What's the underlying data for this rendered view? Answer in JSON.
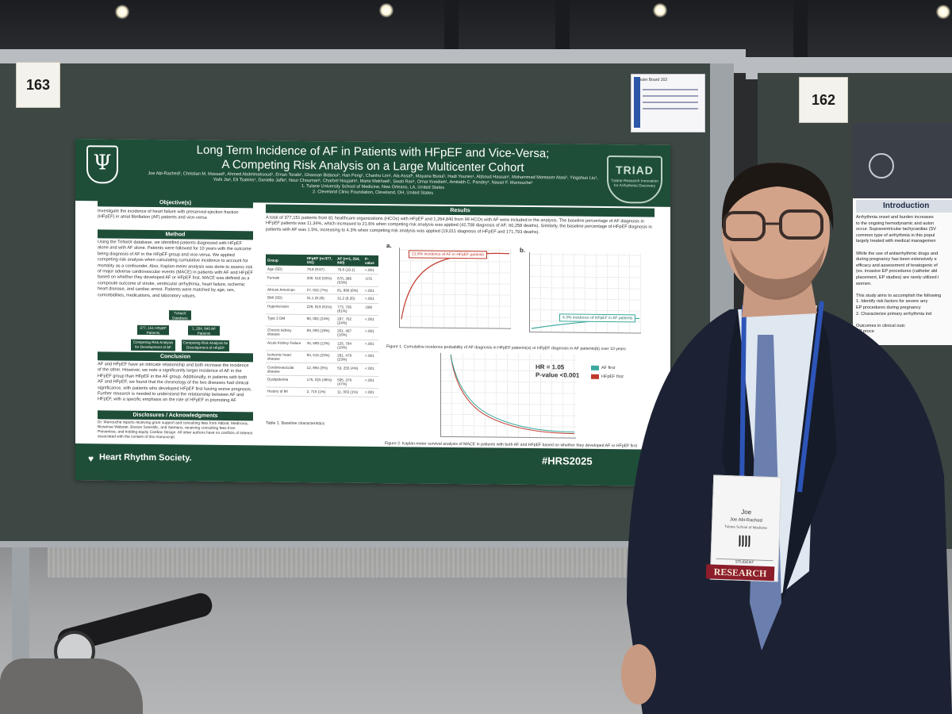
{
  "board_left": {
    "number": "163"
  },
  "board_right": {
    "number": "162"
  },
  "small_card": {
    "title": "Poster Board 163"
  },
  "poster": {
    "title_line1": "Long Term Incidence of AF in Patients with HFpEF and Vice-Versa;",
    "title_line2": "A Competing Risk Analysis on a Large Multicenter Cohort",
    "authors": "Joe Abi-Rached¹, Christian M. Massad¹, Ahmed Abdelmaksoud¹, Eman Torabi¹, Ghassan Bidaoui¹, Han Feng¹, Chanho Lim¹, Ala Assaf¹, Mayana Bsoul¹, Hadi Younes¹, Abboud Hassan¹, Mohammad Montaser Atasi¹, Yingshuo Liu¹, Yishi Jia¹, Eli Tsakiris¹, Danielle Jaffe¹, Nour Chouman¹, Charbel Noujaim¹, Mario Mekhael¹, Swati Rao¹, Omar Kreidieh¹, Amitabh C. Pandey¹, Nassir F. Marrouche¹",
    "affil1": "1. Tulane University School of Medicine, New Orleans, LA, United States",
    "affil2": "2. Cleveland Clinic Foundation, Cleveland, OH, United States",
    "logo_right": "TRIAD",
    "logo_right_sub": "Tulane Research Innovation for Arrhythmia Discovery",
    "objective_h": "Objective(s)",
    "objective_t": "Investigate the incidence of heart failure with preserved ejection fraction (HFpEF) in atrial fibrillation (AF) patients and vice-versa",
    "method_h": "Method",
    "method_t": "Using the TriNetX database, we identified patients diagnosed with HFpEF alone and with AF alone. Patients were followed for 10 years with the outcome being diagnosis of AF in the HFpEF group and vice-versa. We applied competing risk analysis when calculating cumulative incidence to account for mortality as a confounder. Also, Kaplan-meier analysis was done to assess risk of major adverse cardiovascular events (MACE) in patients with AF and HFpEF based on whether they developed AF or HFpEF first. MACE was defined as a composite outcome of stroke, ventricular arrhythmia, heart failure, ischemic heart disease, and cardiac arrest. Patients were matched by age, sex, comorbidities, medications, and laboratory values.",
    "flow_db": "TriNetX Database",
    "flow_a": "377, 151 HFpEF Patients",
    "flow_b": "1, 264, 840 AF Patients",
    "flow_c": "Competing Risk Analysis for Development of AF",
    "flow_d": "Competing Risk Analysis for Development of HFpEF",
    "conclusion_h": "Conclusion",
    "conclusion_t": "AF and HFpEF have an intricate relationship and both increase the incidence of the other. However, we note a significantly larger incidence of AF in the HFpEF group than HFpEF in the AF group. Additionally, in patients with both AF and HFpEF, we found that the chronology of the two diseases had clinical significance, with patients who developed HFpEF first having worse prognosis. Further research is needed to understand the relationship between AF and HFpEF, with a specific emphasis on the role of HFpEF in promoting AF",
    "disclosures_h": "Disclosures / Acknowledgments",
    "disclosures_t": "Dr. Marrouche reports receiving grant support and consulting fees from Abbott, Medtronic, Biosense Webster, Boston Scientific, and Siemens, receiving consulting fees from Preventice, and holding equity Cardiac Design. All other authors have no conflicts of interest associated with the content of this manuscript.",
    "results_h": "Results",
    "results_t": "A total of 377,151 patients from 81 healthcare organizations (HCOs) with HFpEF and 1,264,840 from 99 HCOs with AF were included in the analysis. The baseline percentage of AF diagnosis in HFpEF patients was 11.34%, which increased to 21.6% when competing risk analysis was applied (42,708 diagnosis of AF; 60,258 deaths). Similarly, the baseline percentage of HFpEF diagnosis in patients with AF was 1.5%, increasing to 4.3% when competing risk analysis was applied (19,011 diagnosis of HFpEF and 171,793 deaths).",
    "table": {
      "headers": [
        "Group",
        "HFpEF (n=377, 151)",
        "AF (n=1, 264, 840)",
        "P-value"
      ],
      "rows": [
        [
          "Age (SD)",
          "79.8 (9.67)",
          "76.6 (10.1)",
          "<.001"
        ],
        [
          "Female",
          "200, 518 (53%)",
          "670, 386 (53%)",
          ".075"
        ],
        [
          "African American",
          "27, 022 (7%)",
          "81, 889 (6%)",
          "<.001"
        ],
        [
          "BMI (SD)",
          "31.1 (8.26)",
          "31.2 (8.35)",
          "<.001"
        ],
        [
          "Hypertension",
          "229, 819 (61%)",
          "773, 756 (61%)",
          ".008"
        ],
        [
          "Type 2 DM",
          "90, 082 (24%)",
          "297, 762 (24%)",
          "<.001"
        ],
        [
          "Chronic kidney disease",
          "69, 093 (18%)",
          "201, 497 (16%)",
          "<.001"
        ],
        [
          "Acute Kidney Failure",
          "45, 589 (12%)",
          "125, 794 (10%)",
          "<.001"
        ],
        [
          "Ischemic heart disease",
          "94, 515 (25%)",
          "291, 479 (23%)",
          "<.001"
        ],
        [
          "Cerebrovascular disease",
          "12, 894 (3%)",
          "53, 255 (4%)",
          "<.001"
        ],
        [
          "Dyslipidemia",
          "175, 025 (46%)",
          "595, 379 (47%)",
          "<.001"
        ],
        [
          "History of MI",
          "2, 715 (1%)",
          "11, 003 (1%)",
          "<.001"
        ]
      ]
    },
    "table_caption": "Table 1. Baseline characteristics",
    "fig_a_label": "a.",
    "fig_b_label": "b.",
    "fig_a_annot": "21.6% incidence of AF in HFpEF patients",
    "fig_b_annot": "4.3% incidence of HFpEF in AF patients",
    "fig1_caption": "Figure 1. Cumulative incidence probability of AF diagnosis in HFpEF patients(a) or HFpEF diagnosis in AF patients(b) over 10 years",
    "hr": "HR = 1.05",
    "pval": "P-value <0.001",
    "legend": [
      "AF first",
      "HFpEF first"
    ],
    "legend_colors": [
      "#3aa89d",
      "#c0392b"
    ],
    "fig2_caption": "Figure 2. Kaplan-meier survival analysis of MACE in patients with both AF and HFpEF based on whether they developed AF or HFpEF first",
    "footer_society": "Heart Rhythm Society.",
    "footer_tag": "#HRS2025"
  },
  "right_poster": {
    "intro_h": "Introduction",
    "lines": [
      "Arrhythmia onset and burden increases",
      "to the ongoing hemodynamic and auton",
      "occur. Supraventricular tachycardias (SV",
      "common type of arrhythmia in this popul",
      "largely treated with medical managemen",
      "",
      "While the use of antiarrhythmic drugs and",
      "during pregnancy has been extensively e",
      "efficacy and assessment of teratogenic ef",
      "(ex. invasive EP procedures (catheter abl",
      "placement, EP studies) are rarely utilized i",
      "women.",
      "",
      "This study aims to accomplish the following",
      "1.  Identify risk factors for severe arry",
      "    EP procedures during pregnancy",
      "2.  Characterize primary arrhythmia ind",
      "",
      "    Outcomes in clinical outc",
      "    EP proce"
    ]
  },
  "badge": {
    "name": "Joe",
    "full_name": "Joe Abi-Rached",
    "org": "Tulane School of Medicine",
    "role": "STUDENT",
    "ribbon": "RESEARCH"
  }
}
